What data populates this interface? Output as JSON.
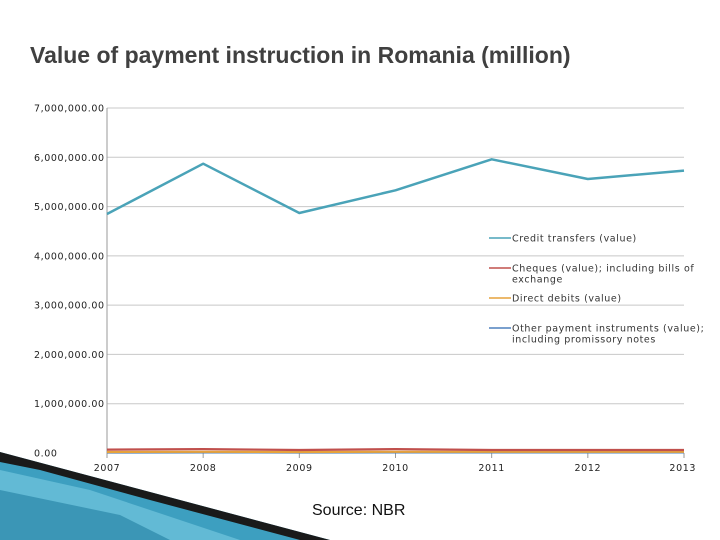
{
  "title": "Value of payment instruction in Romania (million)",
  "source": "Source: NBR",
  "colors": {
    "credit": "#4aa3b8",
    "cheques": "#c0504d",
    "debits": "#e6a23c",
    "other": "#4f81bd",
    "grid": "#c8c8c8"
  },
  "chart_data": {
    "type": "line",
    "title": "Value of payment instruction in Romania (million)",
    "xlabel": "",
    "ylabel": "",
    "categories": [
      "2007",
      "2008",
      "2009",
      "2010",
      "2011",
      "2012",
      "2013"
    ],
    "ylim": [
      0,
      7000000
    ],
    "yticks": [
      {
        "value": 0,
        "label": "0.00"
      },
      {
        "value": 1000000,
        "label": "1,000,000.00"
      },
      {
        "value": 2000000,
        "label": "2,000,000.00"
      },
      {
        "value": 3000000,
        "label": "3,000,000.00"
      },
      {
        "value": 4000000,
        "label": "4,000,000.00"
      },
      {
        "value": 5000000,
        "label": "5,000,000.00"
      },
      {
        "value": 6000000,
        "label": "6,000,000.00"
      },
      {
        "value": 7000000,
        "label": "7,000,000.00"
      }
    ],
    "grid": true,
    "legend_position": "right",
    "series": [
      {
        "name": "Credit transfers (value)",
        "color": "#4aa3b8",
        "values": [
          4850000,
          5870000,
          4870000,
          5330000,
          5960000,
          5560000,
          5730000
        ]
      },
      {
        "name": "Cheques (value); including bills of exchange",
        "color": "#c0504d",
        "values": [
          70000,
          80000,
          60000,
          80000,
          60000,
          60000,
          60000
        ]
      },
      {
        "name": "Direct debits (value)",
        "color": "#e6a23c",
        "values": [
          20000,
          25000,
          20000,
          25000,
          25000,
          25000,
          25000
        ]
      },
      {
        "name": "Other payment instruments (value); including promissory notes",
        "color": "#4f81bd",
        "values": [
          10000,
          12000,
          10000,
          12000,
          12000,
          12000,
          12000
        ]
      }
    ]
  }
}
